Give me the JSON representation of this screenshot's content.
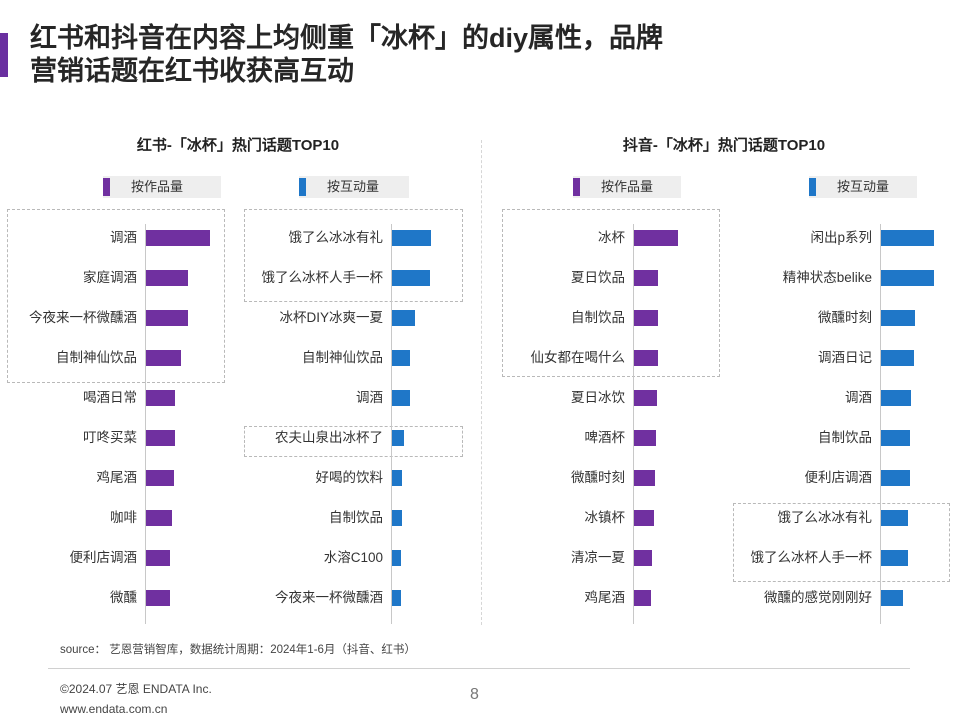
{
  "title": {
    "line1": "红书和抖音在内容上均侧重「冰杯」的diy属性，品牌",
    "line2": "营销话题在红书收获高互动"
  },
  "colors": {
    "accent": "#6a2fa0",
    "purple": "#7030a0",
    "blue": "#1f77c8"
  },
  "left_panel": {
    "title": "红书-「冰杯」热门话题TOP10",
    "legend_works": "按作品量",
    "legend_interaction": "按互动量"
  },
  "right_panel": {
    "title": "抖音-「冰杯」热门话题TOP10",
    "legend_works": "按作品量",
    "legend_interaction": "按互动量"
  },
  "chart_data": [
    {
      "type": "bar",
      "orientation": "horizontal",
      "title": "红书-「冰杯」热门话题TOP10 按作品量",
      "categories": [
        "调酒",
        "家庭调酒",
        "今夜来一杯微醺酒",
        "自制神仙饮品",
        "喝酒日常",
        "叮咚买菜",
        "鸡尾酒",
        "咖啡",
        "便利店调酒",
        "微醺"
      ],
      "values": [
        100,
        66,
        65,
        55,
        46,
        45,
        44,
        41,
        38,
        37
      ],
      "color": "#7030a0",
      "highlighted": [
        "调酒",
        "家庭调酒",
        "今夜来一杯微醺酒",
        "自制神仙饮品"
      ]
    },
    {
      "type": "bar",
      "orientation": "horizontal",
      "title": "红书-「冰杯」热门话题TOP10 按互动量",
      "categories": [
        "饿了么冰冰有礼",
        "饿了么冰杯人手一杯",
        "冰杯DIY冰爽一夏",
        "自制神仙饮品",
        "调酒",
        "农夫山泉出冰杯了",
        "好喝的饮料",
        "自制饮品",
        "水溶C100",
        "今夜来一杯微醺酒"
      ],
      "values": [
        100,
        98,
        58,
        46,
        46,
        30,
        26,
        25,
        24,
        23
      ],
      "color": "#1f77c8",
      "highlighted": [
        "饿了么冰冰有礼",
        "饿了么冰杯人手一杯",
        "农夫山泉出冰杯了"
      ]
    },
    {
      "type": "bar",
      "orientation": "horizontal",
      "title": "抖音-「冰杯」热门话题TOP10 按作品量",
      "categories": [
        "冰杯",
        "夏日饮品",
        "自制饮品",
        "仙女都在喝什么",
        "夏日冰饮",
        "啤酒杯",
        "微醺时刻",
        "冰镇杯",
        "清凉一夏",
        "鸡尾酒"
      ],
      "values": [
        100,
        55,
        55,
        54,
        52,
        50,
        48,
        46,
        40,
        38
      ],
      "color": "#7030a0",
      "highlighted": [
        "冰杯",
        "夏日饮品",
        "自制饮品",
        "仙女都在喝什么"
      ]
    },
    {
      "type": "bar",
      "orientation": "horizontal",
      "title": "抖音-「冰杯」热门话题TOP10 按互动量",
      "categories": [
        "闲出p系列",
        "精神状态belike",
        "微醺时刻",
        "调酒日记",
        "调酒",
        "自制饮品",
        "便利店调酒",
        "饿了么冰冰有礼",
        "饿了么冰杯人手一杯",
        "微醺的感觉刚刚好"
      ],
      "values": [
        100,
        100,
        65,
        63,
        56,
        54,
        54,
        50,
        50,
        42
      ],
      "color": "#1f77c8",
      "highlighted": [
        "饿了么冰冰有礼",
        "饿了么冰杯人手一杯"
      ]
    }
  ],
  "footer": {
    "source": "source： 艺恩营销智库，数据统计周期：2024年1-6月（抖音、红书）",
    "copyright": "©2024.07  艺恩 ENDATA Inc.",
    "website": "www.endata.com.cn",
    "page": "8"
  }
}
